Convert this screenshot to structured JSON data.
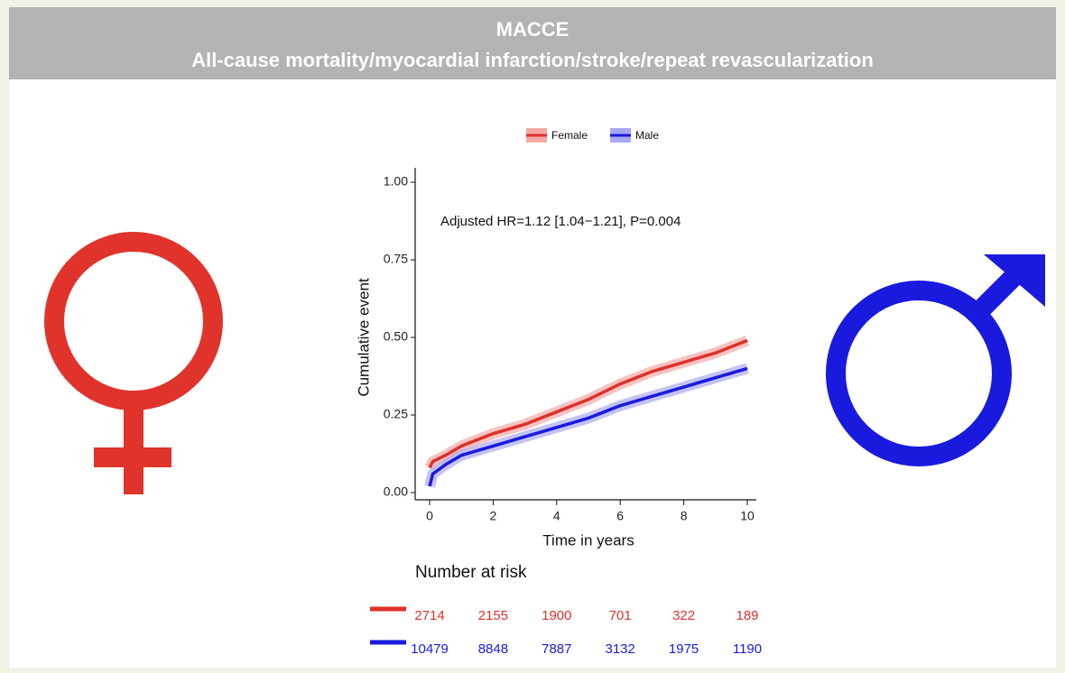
{
  "chart_data": {
    "type": "line",
    "title": "MACCE",
    "subtitle": "All-cause mortality/myocardial infarction/stroke/repeat revascularization",
    "annotation": "Adjusted HR=1.12 [1.04−1.21], P=0.004",
    "xlabel": "Time in years",
    "ylabel": "Cumulative event",
    "x": [
      0,
      0.1,
      0.5,
      1,
      2,
      3,
      4,
      5,
      6,
      7,
      8,
      9,
      10
    ],
    "series": [
      {
        "name": "Female",
        "color": "#e0302a",
        "values": [
          0.08,
          0.1,
          0.12,
          0.15,
          0.19,
          0.22,
          0.26,
          0.3,
          0.35,
          0.39,
          0.42,
          0.45,
          0.49
        ]
      },
      {
        "name": "Male",
        "color": "#1a1adf",
        "values": [
          0.02,
          0.06,
          0.09,
          0.12,
          0.15,
          0.18,
          0.21,
          0.24,
          0.28,
          0.31,
          0.34,
          0.37,
          0.4
        ]
      }
    ],
    "xlim": [
      0,
      10
    ],
    "ylim": [
      0,
      1
    ],
    "xticks": [
      0,
      2,
      4,
      6,
      8,
      10
    ],
    "yticks": [
      {
        "value": 0,
        "label": "0.00"
      },
      {
        "value": 0.25,
        "label": "0.25"
      },
      {
        "value": 0.5,
        "label": "0.50"
      },
      {
        "value": 0.75,
        "label": "0.75"
      },
      {
        "value": 1,
        "label": "1.00"
      }
    ],
    "legend": "top",
    "risk_table": {
      "title": "Number at risk",
      "x": [
        0,
        2,
        4,
        6,
        8,
        10
      ],
      "rows": [
        [
          2714,
          2155,
          1900,
          701,
          322,
          189
        ],
        [
          10479,
          8848,
          7887,
          3132,
          1975,
          1190
        ]
      ]
    }
  }
}
